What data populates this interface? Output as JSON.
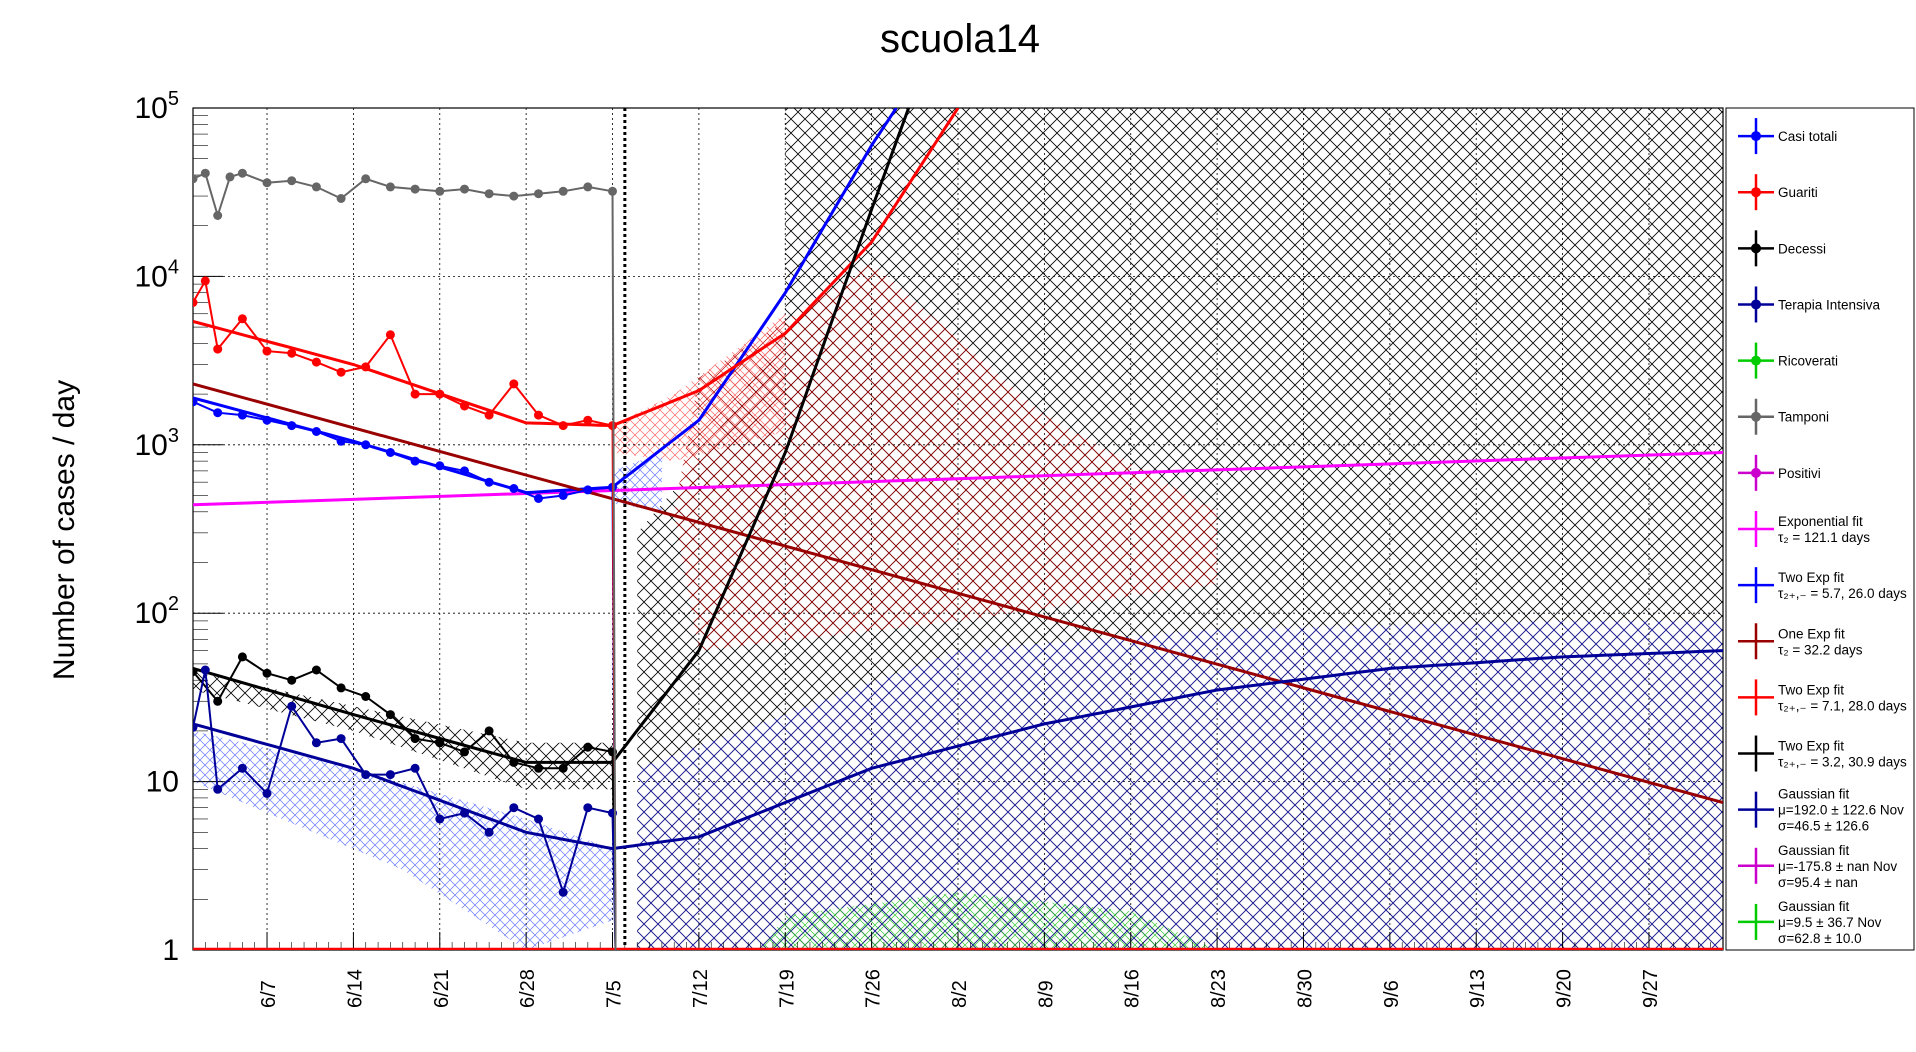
{
  "chart_data": {
    "type": "line",
    "title": "scuola14",
    "ylabel": "Number of cases / day",
    "xlabel": "",
    "yscale": "log",
    "ylim": [
      1,
      100000
    ],
    "xlim": [
      "6/1",
      "10/3"
    ],
    "x_ticks": [
      "6/7",
      "6/14",
      "6/21",
      "6/28",
      "7/5",
      "7/12",
      "7/19",
      "7/26",
      "8/2",
      "8/9",
      "8/16",
      "8/23",
      "8/30",
      "9/6",
      "9/13",
      "9/20",
      "9/27"
    ],
    "y_ticks": [
      "1",
      "10",
      "10^2",
      "10^3",
      "10^4",
      "10^5"
    ],
    "grid": true,
    "legend_position": "right",
    "marker_line": "7/6",
    "series": [
      {
        "name": "Casi totali",
        "color": "#0000ff",
        "x": [
          "6/1",
          "6/3",
          "6/5",
          "6/7",
          "6/9",
          "6/11",
          "6/13",
          "6/15",
          "6/17",
          "6/19",
          "6/21",
          "6/23",
          "6/25",
          "6/27",
          "6/29",
          "7/1",
          "7/3",
          "7/5"
        ],
        "values": [
          1800,
          1550,
          1500,
          1400,
          1300,
          1200,
          1050,
          1000,
          900,
          800,
          750,
          700,
          600,
          550,
          480,
          500,
          540,
          560
        ]
      },
      {
        "name": "Guariti",
        "color": "#ff0000",
        "x": [
          "6/1",
          "6/2",
          "6/3",
          "6/5",
          "6/7",
          "6/9",
          "6/11",
          "6/13",
          "6/15",
          "6/17",
          "6/19",
          "6/21",
          "6/23",
          "6/25",
          "6/27",
          "6/29",
          "7/1",
          "7/3",
          "7/5"
        ],
        "values": [
          7000,
          9400,
          3700,
          5600,
          3600,
          3500,
          3100,
          2700,
          2900,
          4500,
          2000,
          2000,
          1700,
          1500,
          2300,
          1500,
          1300,
          1400,
          1300
        ]
      },
      {
        "name": "Decessi",
        "color": "#000000",
        "x": [
          "6/1",
          "6/3",
          "6/5",
          "6/7",
          "6/9",
          "6/11",
          "6/13",
          "6/15",
          "6/17",
          "6/19",
          "6/21",
          "6/23",
          "6/25",
          "6/27",
          "6/29",
          "7/1",
          "7/3",
          "7/5"
        ],
        "values": [
          45,
          30,
          55,
          44,
          40,
          46,
          36,
          32,
          25,
          18,
          17,
          15,
          20,
          13,
          12,
          12,
          16,
          15
        ]
      },
      {
        "name": "Terapia Intensiva",
        "color": "#000099",
        "x": [
          "6/1",
          "6/2",
          "6/3",
          "6/5",
          "6/7",
          "6/9",
          "6/11",
          "6/13",
          "6/15",
          "6/17",
          "6/19",
          "6/21",
          "6/23",
          "6/25",
          "6/27",
          "6/29",
          "7/1",
          "7/3",
          "7/5"
        ],
        "values": [
          21,
          46,
          9,
          12,
          8.5,
          28,
          17,
          18,
          11,
          11,
          12,
          6,
          6.5,
          5,
          7,
          6,
          2.2,
          7,
          6.5
        ]
      },
      {
        "name": "Ricoverati",
        "color": "#00cc00",
        "x": [],
        "values": []
      },
      {
        "name": "Tamponi",
        "color": "#666666",
        "x": [
          "6/1",
          "6/2",
          "6/3",
          "6/4",
          "6/5",
          "6/7",
          "6/9",
          "6/11",
          "6/13",
          "6/15",
          "6/17",
          "6/19",
          "6/21",
          "6/23",
          "6/25",
          "6/27",
          "6/29",
          "7/1",
          "7/3",
          "7/5"
        ],
        "values": [
          38000,
          41000,
          23000,
          39000,
          41000,
          36000,
          37000,
          34000,
          29000,
          38000,
          34000,
          33000,
          32000,
          33000,
          31000,
          30000,
          31000,
          32000,
          34000,
          32000
        ]
      },
      {
        "name": "Positivi",
        "color": "#cc00cc",
        "x": [],
        "values": []
      }
    ],
    "fits": [
      {
        "name": "Exponential fit",
        "label": "τ₂ = 121.1 days",
        "color": "#ff00ff",
        "x": [
          "6/1",
          "10/3"
        ],
        "values": [
          440,
          900
        ]
      },
      {
        "name": "Two Exp fit",
        "label": "τ₂₊,₋ = 5.7, 26.0 days",
        "color": "#0000ff",
        "x": [
          "6/1",
          "6/14",
          "6/28",
          "7/5",
          "7/12",
          "7/19",
          "7/26",
          "7/28"
        ],
        "values": [
          1900,
          1050,
          520,
          560,
          1400,
          8000,
          60000,
          100000
        ]
      },
      {
        "name": "One Exp fit",
        "label": "τ₂ = 32.2 days",
        "color": "#990000",
        "x": [
          "6/1",
          "10/3"
        ],
        "values": [
          2300,
          7.5
        ]
      },
      {
        "name": "Two Exp fit",
        "label": "τ₂₊,₋ = 7.1, 28.0 days",
        "color": "#ff0000",
        "x": [
          "6/1",
          "6/14",
          "6/28",
          "7/5",
          "7/12",
          "7/19",
          "7/26",
          "8/2"
        ],
        "values": [
          5400,
          3000,
          1350,
          1300,
          2100,
          4600,
          16000,
          100000
        ]
      },
      {
        "name": "Two Exp fit",
        "label": "τ₂₊,₋ = 3.2, 30.9 days",
        "color": "#000000",
        "x": [
          "6/1",
          "6/14",
          "6/28",
          "7/5",
          "7/12",
          "7/19",
          "7/26",
          "7/29"
        ],
        "values": [
          47,
          25,
          13,
          13,
          60,
          900,
          25000,
          100000
        ]
      },
      {
        "name": "Gaussian fit",
        "label": "μ=192.0 ± 122.6 Nov",
        "label2": "σ=46.5 ± 126.6",
        "color": "#000099",
        "x": [
          "6/1",
          "6/14",
          "6/28",
          "7/5",
          "7/12",
          "7/26",
          "8/9",
          "8/23",
          "9/6",
          "9/20",
          "10/3"
        ],
        "values": [
          22,
          12,
          5,
          4,
          4.7,
          12,
          22,
          35,
          47,
          55,
          60
        ]
      },
      {
        "name": "Gaussian fit",
        "label": "μ=-175.8 ± nan Nov",
        "label2": "σ=95.4 ± nan",
        "color": "#cc00cc",
        "x": [],
        "values": []
      },
      {
        "name": "Gaussian fit",
        "label": "μ=9.5 ± 36.7 Nov",
        "label2": "σ=62.8 ± 10.0",
        "color": "#00cc00",
        "x": [],
        "values": []
      }
    ]
  }
}
